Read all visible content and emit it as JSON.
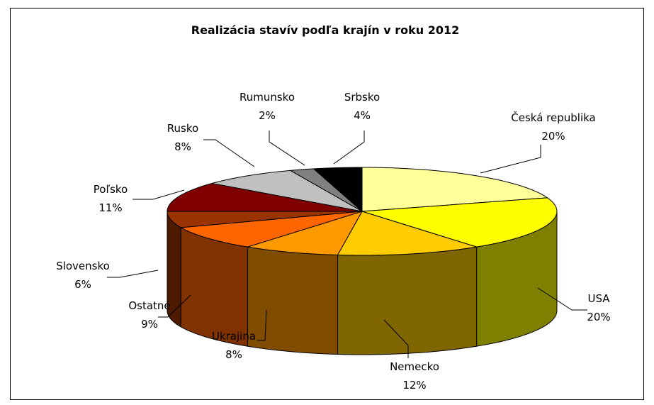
{
  "chart_data": {
    "type": "pie",
    "title": "Realizácia stavív podľa krajín v roku 2012",
    "slices": [
      {
        "label": "Česká republika",
        "value": 20,
        "value_label": "20%",
        "color": "#FFFF99"
      },
      {
        "label": "USA",
        "value": 20,
        "value_label": "20%",
        "color": "#FFFF00"
      },
      {
        "label": "Nemecko",
        "value": 12,
        "value_label": "12%",
        "color": "#FFCC00"
      },
      {
        "label": "Ukrajina",
        "value": 8,
        "value_label": "8%",
        "color": "#FF9900"
      },
      {
        "label": "Ostatné",
        "value": 9,
        "value_label": "9%",
        "color": "#FF6600"
      },
      {
        "label": "Slovensko",
        "value": 6,
        "value_label": "6%",
        "color": "#993300"
      },
      {
        "label": "Poľsko",
        "value": 11,
        "value_label": "11%",
        "color": "#800000"
      },
      {
        "label": "Rusko",
        "value": 8,
        "value_label": "8%",
        "color": "#C0C0C0"
      },
      {
        "label": "Rumunsko",
        "value": 2,
        "value_label": "2%",
        "color": "#808080"
      },
      {
        "label": "Srbsko",
        "value": 4,
        "value_label": "4%",
        "color": "#000000"
      }
    ],
    "legend": "none",
    "style": "3d-pie"
  }
}
